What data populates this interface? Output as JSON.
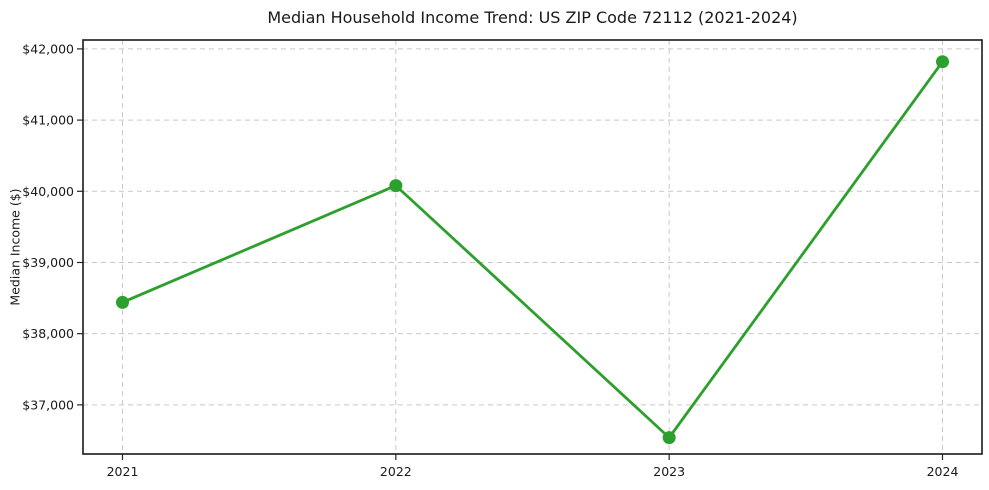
{
  "chart_data": {
    "type": "line",
    "title": "Median Household Income Trend: US ZIP Code 72112 (2021-2024)",
    "xlabel": "",
    "ylabel": "Median Income ($)",
    "x": [
      2021,
      2022,
      2023,
      2024
    ],
    "x_tick_labels": [
      "2021",
      "2022",
      "2023",
      "2024"
    ],
    "series": [
      {
        "name": "Median Household Income",
        "values": [
          38440,
          40080,
          36540,
          41820
        ]
      }
    ],
    "y_ticks": [
      37000,
      38000,
      39000,
      40000,
      41000,
      42000
    ],
    "y_tick_labels": [
      "$37,000",
      "$38,000",
      "$39,000",
      "$40,000",
      "$41,000",
      "$42,000"
    ],
    "ylim": [
      36310,
      42125
    ],
    "grid": true,
    "grid_style": "dashed",
    "legend": "none",
    "line_color": "#2ca02c",
    "marker_color": "#2ca02c",
    "marker": "circle",
    "grid_color": "#c9c9c9",
    "background_color": "#ffffff"
  }
}
